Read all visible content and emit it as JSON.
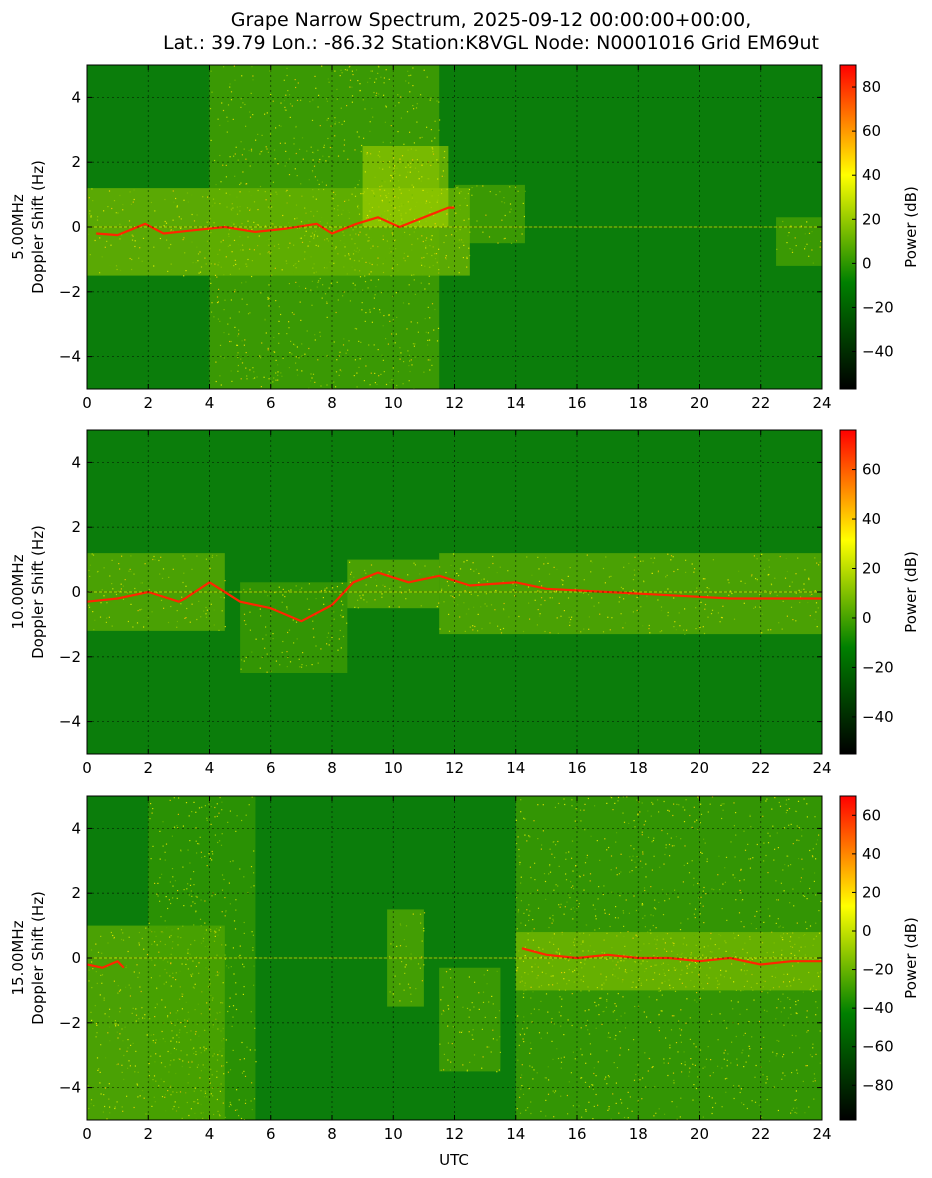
{
  "figure": {
    "title_line1": "Grape Narrow Spectrum, 2025-09-12 00:00:00+00:00,",
    "title_line2": "Lat.: 39.79 Lon.: -86.32 Station:K8VGL Node: N0001016 Grid EM69ut",
    "xlabel": "UTC"
  },
  "colors": {
    "colormap": [
      "#000000",
      "#008000",
      "#ffff00",
      "#ff0000"
    ],
    "background_green": "#0b7d0b"
  },
  "chart_data": [
    {
      "type": "heatmap",
      "ylabel_line1": "5.00MHz",
      "ylabel_line2": "Doppler Shift (Hz)",
      "colorbar_label": "Power (dB)",
      "xlim": [
        0,
        24
      ],
      "ylim": [
        -5,
        5
      ],
      "x_ticks": [
        0,
        2,
        4,
        6,
        8,
        10,
        12,
        14,
        16,
        18,
        20,
        22,
        24
      ],
      "y_ticks": [
        -4,
        -2,
        0,
        2,
        4
      ],
      "clim": [
        -57,
        90
      ],
      "colorbar_ticks": [
        -40,
        -20,
        0,
        20,
        40,
        60,
        80
      ],
      "grid": true,
      "carrier_trace": [
        [
          0.3,
          -0.2
        ],
        [
          1,
          -0.25
        ],
        [
          1.9,
          0.1
        ],
        [
          2.5,
          -0.2
        ],
        [
          3.5,
          -0.1
        ],
        [
          4.5,
          0.0
        ],
        [
          5.5,
          -0.15
        ],
        [
          6.5,
          -0.05
        ],
        [
          7.5,
          0.1
        ],
        [
          8,
          -0.2
        ],
        [
          8.8,
          0.1
        ],
        [
          9.5,
          0.3
        ],
        [
          10.2,
          0.0
        ],
        [
          11,
          0.3
        ],
        [
          11.8,
          0.6
        ],
        [
          12,
          0.6
        ]
      ],
      "active_regions": [
        {
          "x0": 0,
          "x1": 12.5,
          "y0": -1.5,
          "y1": 1.2,
          "level": 0.55
        },
        {
          "x0": 4,
          "x1": 11.5,
          "y0": -5,
          "y1": 5,
          "level": 0.35
        },
        {
          "x0": 9,
          "x1": 11.8,
          "y0": 0,
          "y1": 2.5,
          "level": 0.6
        },
        {
          "x0": 12,
          "x1": 14.3,
          "y0": -0.5,
          "y1": 1.3,
          "level": 0.35
        },
        {
          "x0": 22.5,
          "x1": 24,
          "y0": -1.2,
          "y1": 0.3,
          "level": 0.35
        }
      ]
    },
    {
      "type": "heatmap",
      "ylabel_line1": "10.00MHz",
      "ylabel_line2": "Doppler Shift (Hz)",
      "colorbar_label": "Power (dB)",
      "xlim": [
        0,
        24
      ],
      "ylim": [
        -5,
        5
      ],
      "x_ticks": [
        0,
        2,
        4,
        6,
        8,
        10,
        12,
        14,
        16,
        18,
        20,
        22,
        24
      ],
      "y_ticks": [
        -4,
        -2,
        0,
        2,
        4
      ],
      "clim": [
        -55,
        76
      ],
      "colorbar_ticks": [
        -40,
        -20,
        0,
        20,
        40,
        60
      ],
      "grid": true,
      "carrier_trace": [
        [
          0,
          -0.3
        ],
        [
          1,
          -0.2
        ],
        [
          2,
          0.0
        ],
        [
          3,
          -0.3
        ],
        [
          3.2,
          -0.2
        ],
        [
          4,
          0.3
        ],
        [
          5,
          -0.3
        ],
        [
          6,
          -0.5
        ],
        [
          7,
          -0.9
        ],
        [
          8,
          -0.4
        ],
        [
          8.7,
          0.3
        ],
        [
          9.5,
          0.6
        ],
        [
          10.5,
          0.3
        ],
        [
          11.5,
          0.5
        ],
        [
          12.5,
          0.2
        ],
        [
          14,
          0.3
        ],
        [
          15,
          0.1
        ],
        [
          17,
          0.0
        ],
        [
          19,
          -0.1
        ],
        [
          21,
          -0.2
        ],
        [
          22.5,
          -0.2
        ],
        [
          24,
          -0.2
        ]
      ],
      "active_regions": [
        {
          "x0": 0,
          "x1": 4.5,
          "y0": -1.2,
          "y1": 1.2,
          "level": 0.45
        },
        {
          "x0": 5,
          "x1": 8.5,
          "y0": -2.5,
          "y1": 0.3,
          "level": 0.3
        },
        {
          "x0": 8.5,
          "x1": 11.5,
          "y0": -0.5,
          "y1": 1.0,
          "level": 0.45
        },
        {
          "x0": 11.5,
          "x1": 24,
          "y0": -1.3,
          "y1": 1.2,
          "level": 0.45
        }
      ]
    },
    {
      "type": "heatmap",
      "ylabel_line1": "15.00MHz",
      "ylabel_line2": "Doppler Shift (Hz)",
      "colorbar_label": "Power (dB)",
      "xlim": [
        0,
        24
      ],
      "ylim": [
        -5,
        5
      ],
      "x_ticks": [
        0,
        2,
        4,
        6,
        8,
        10,
        12,
        14,
        16,
        18,
        20,
        22,
        24
      ],
      "y_ticks": [
        -4,
        -2,
        0,
        2,
        4
      ],
      "clim": [
        -98,
        70
      ],
      "colorbar_ticks": [
        -80,
        -60,
        -40,
        -20,
        0,
        20,
        40,
        60
      ],
      "grid": true,
      "carrier_trace": [
        [
          0,
          -0.2
        ],
        [
          0.5,
          -0.3
        ],
        [
          1,
          -0.1
        ],
        [
          1.2,
          -0.3
        ],
        [
          14.2,
          0.3
        ],
        [
          15,
          0.1
        ],
        [
          16,
          0.0
        ],
        [
          17,
          0.1
        ],
        [
          18,
          0.0
        ],
        [
          19,
          0.0
        ],
        [
          20,
          -0.1
        ],
        [
          21,
          0.0
        ],
        [
          22,
          -0.2
        ],
        [
          23,
          -0.1
        ],
        [
          24,
          -0.1
        ]
      ],
      "active_regions": [
        {
          "x0": 0,
          "x1": 4.5,
          "y0": -5,
          "y1": 1.0,
          "level": 0.45
        },
        {
          "x0": 2,
          "x1": 5.5,
          "y0": -5,
          "y1": 5,
          "level": 0.25
        },
        {
          "x0": 9.8,
          "x1": 11,
          "y0": -1.5,
          "y1": 1.5,
          "level": 0.4
        },
        {
          "x0": 11.5,
          "x1": 13.5,
          "y0": -3.5,
          "y1": -0.3,
          "level": 0.35
        },
        {
          "x0": 14,
          "x1": 24,
          "y0": -5,
          "y1": 5,
          "level": 0.3
        },
        {
          "x0": 14,
          "x1": 24,
          "y0": -1.0,
          "y1": 0.8,
          "level": 0.5
        }
      ]
    }
  ]
}
